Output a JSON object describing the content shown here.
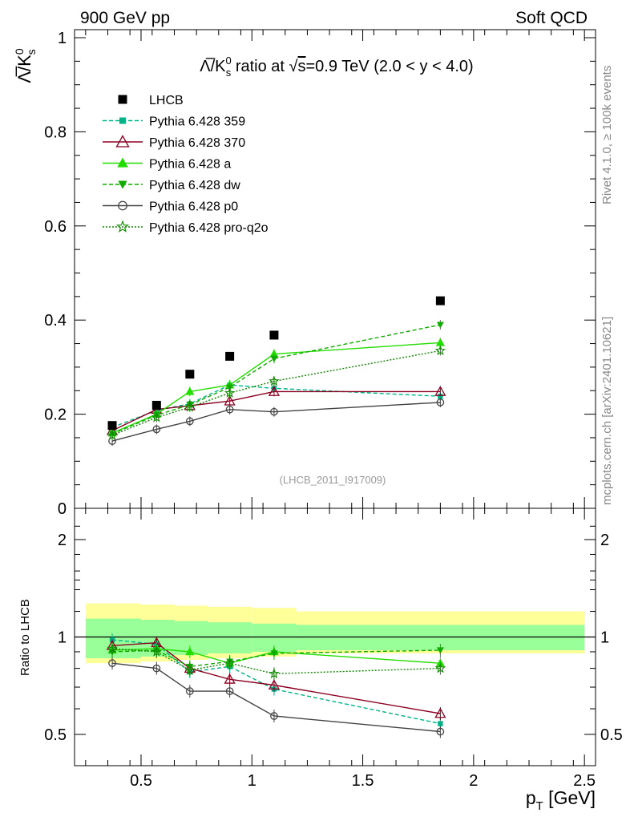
{
  "header": {
    "left": "900 GeV pp",
    "right": "Soft QCD"
  },
  "side_labels": {
    "top": "Rivet 4.1.0, ≥ 100k events",
    "bottom": "mcplots.cern.ch [arXiv:2401.10621]"
  },
  "reference_label": "(LHCB_2011_I917009)",
  "chart_data": [
    {
      "panel": "main",
      "type": "scatter",
      "title": "Λ̅/K⁰s ratio at √s=0.9 TeV (2.0 < y < 4.0)",
      "title_parts": {
        "prefix": "Λ̅/K",
        "sup": "0",
        "sub": "s",
        "mid": " ratio at √",
        "s": "s",
        "suffix": "=0.9 TeV (2.0 < y < 4.0)"
      },
      "ylabel": "Λ̅/K⁰s",
      "ylabel_parts": {
        "base": "Λ̅/K",
        "sup": "0",
        "sub": "s"
      },
      "xlim": [
        0.2,
        2.55
      ],
      "ylim": [
        0.0,
        1.02
      ],
      "yticks": [
        0,
        0.2,
        0.4,
        0.6,
        0.8,
        1
      ],
      "ytick_labels": [
        "0",
        "0.2",
        "0.4",
        "0.6",
        "0.8",
        "1"
      ],
      "legend_position": "top-left",
      "x": [
        0.37,
        0.57,
        0.72,
        0.9,
        1.1,
        1.85
      ],
      "data": {
        "name": "LHCB",
        "values": [
          0.176,
          0.219,
          0.285,
          0.323,
          0.368,
          0.441
        ],
        "color": "#000000"
      },
      "series": [
        {
          "name": "Pythia 6.428 359",
          "color": "#00b386",
          "dash": "5,3",
          "marker": "square-small",
          "values": [
            0.172,
            0.208,
            0.222,
            0.262,
            0.255,
            0.238
          ]
        },
        {
          "name": "Pythia 6.428 370",
          "color": "#8b0020",
          "dash": "",
          "marker": "triangle-open",
          "values": [
            0.165,
            0.21,
            0.218,
            0.228,
            0.248,
            0.248
          ]
        },
        {
          "name": "Pythia 6.428 a",
          "color": "#22dd00",
          "dash": "",
          "marker": "triangle",
          "values": [
            0.16,
            0.2,
            0.248,
            0.262,
            0.328,
            0.352
          ]
        },
        {
          "name": "Pythia 6.428 dw",
          "color": "#11aa00",
          "dash": "5,3",
          "marker": "triangle-down",
          "values": [
            0.158,
            0.198,
            0.22,
            0.257,
            0.318,
            0.39
          ]
        },
        {
          "name": "Pythia 6.428 p0",
          "color": "#444444",
          "dash": "",
          "marker": "circle-open",
          "values": [
            0.143,
            0.168,
            0.185,
            0.21,
            0.205,
            0.225
          ]
        },
        {
          "name": "Pythia 6.428 pro-q2o",
          "color": "#118800",
          "dash": "2,2",
          "marker": "star",
          "values": [
            0.155,
            0.193,
            0.215,
            0.245,
            0.27,
            0.335
          ]
        }
      ]
    },
    {
      "panel": "ratio",
      "type": "line",
      "ylabel": "Ratio to LHCB",
      "xlabel": "pT [GeV]",
      "xlabel_parts": {
        "base": "p",
        "sub": "T",
        "unit": " [GeV]"
      },
      "xlim": [
        0.2,
        2.55
      ],
      "ylim": [
        0.4,
        2.35
      ],
      "xticks": [
        0.5,
        1,
        1.5,
        2,
        2.5
      ],
      "xtick_labels": [
        "0.5",
        "1",
        "1.5",
        "2",
        "2.5"
      ],
      "yticks": [
        0.5,
        1,
        2
      ],
      "ytick_labels": [
        "0.5",
        "1",
        "2"
      ],
      "x": [
        0.37,
        0.57,
        0.72,
        0.9,
        1.1,
        1.85
      ],
      "bin_edges": [
        0.25,
        0.5,
        0.65,
        0.8,
        1.0,
        1.2,
        2.5
      ],
      "band_inner": [
        [
          0.86,
          1.14
        ],
        [
          0.87,
          1.13
        ],
        [
          0.88,
          1.12
        ],
        [
          0.89,
          1.11
        ],
        [
          0.9,
          1.1
        ],
        [
          0.91,
          1.09
        ]
      ],
      "band_outer": [
        [
          0.83,
          1.27
        ],
        [
          0.84,
          1.26
        ],
        [
          0.85,
          1.25
        ],
        [
          0.86,
          1.24
        ],
        [
          0.87,
          1.23
        ],
        [
          0.89,
          1.2
        ]
      ],
      "series": [
        {
          "name": "Pythia 6.428 359",
          "values": [
            0.98,
            0.95,
            0.78,
            0.81,
            0.69,
            0.54
          ]
        },
        {
          "name": "Pythia 6.428 370",
          "values": [
            0.94,
            0.96,
            0.8,
            0.74,
            0.71,
            0.58
          ]
        },
        {
          "name": "Pythia 6.428 a",
          "values": [
            0.91,
            0.92,
            0.9,
            0.83,
            0.9,
            0.83
          ]
        },
        {
          "name": "Pythia 6.428 dw",
          "values": [
            0.9,
            0.91,
            0.81,
            0.84,
            0.89,
            0.91
          ]
        },
        {
          "name": "Pythia 6.428 p0",
          "values": [
            0.83,
            0.8,
            0.68,
            0.68,
            0.57,
            0.51
          ]
        },
        {
          "name": "Pythia 6.428 pro-q2o",
          "values": [
            0.92,
            0.9,
            0.79,
            0.83,
            0.77,
            0.8
          ]
        }
      ]
    }
  ]
}
